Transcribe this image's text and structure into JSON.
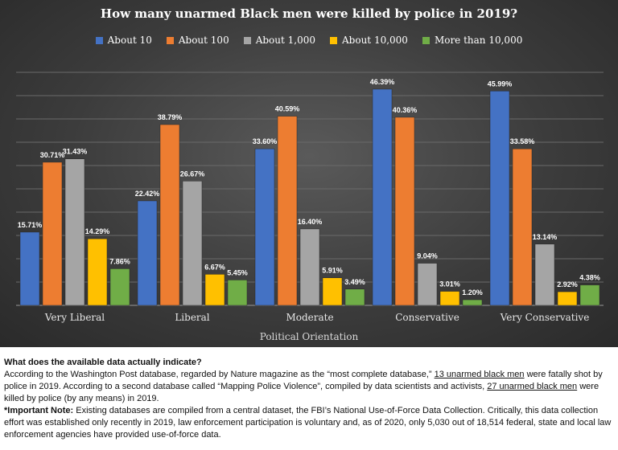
{
  "chart_data": {
    "type": "bar",
    "title": "How many unarmed Black men were killed by police in 2019?",
    "xlabel": "Political Orientation",
    "ylabel": "",
    "ylim": [
      0,
      50
    ],
    "grid": true,
    "legend_position": "top",
    "categories": [
      "Very Liberal",
      "Liberal",
      "Moderate",
      "Conservative",
      "Very Conservative"
    ],
    "series": [
      {
        "name": "About 10",
        "color": "#4472c4",
        "values": [
          15.71,
          22.42,
          33.6,
          46.39,
          45.99
        ],
        "labels": [
          "15.71%",
          "22.42%",
          "33.60%",
          "46.39%",
          "45.99%"
        ]
      },
      {
        "name": "About 100",
        "color": "#ed7d31",
        "values": [
          30.71,
          38.79,
          40.59,
          40.36,
          33.58
        ],
        "labels": [
          "30.71%",
          "38.79%",
          "40.59%",
          "40.36%",
          "33.58%"
        ]
      },
      {
        "name": "About 1,000",
        "color": "#a5a5a5",
        "values": [
          31.43,
          26.67,
          16.4,
          9.04,
          13.14
        ],
        "labels": [
          "31.43%",
          "26.67%",
          "16.40%",
          "9.04%",
          "13.14%"
        ]
      },
      {
        "name": "About 10,000",
        "color": "#ffc000",
        "values": [
          14.29,
          6.67,
          5.91,
          3.01,
          2.92
        ],
        "labels": [
          "14.29%",
          "6.67%",
          "5.91%",
          "3.01%",
          "2.92%"
        ]
      },
      {
        "name": "More than 10,000",
        "color": "#70ad47",
        "values": [
          7.86,
          5.45,
          3.49,
          1.2,
          4.38
        ],
        "labels": [
          "7.86%",
          "5.45%",
          "3.49%",
          "1.20%",
          "4.38%"
        ]
      }
    ]
  },
  "note": {
    "heading": "What does the available data actually indicate?",
    "p1_a": "According to the Washington Post database, regarded by Nature magazine as the “most complete database,” ",
    "p1_link": "13 unarmed black men",
    "p1_b": " were fatally shot by police in 2019. According to a second database called “Mapping Police Violence”, compiled by data scientists and activists, ",
    "p1_link2": "27 unarmed black men",
    "p1_c": " were killed by police (by any means) in 2019.",
    "important_label": "*Important Note:",
    "important_text": " Existing databases are compiled from a central dataset, the FBI’s National Use-of-Force Data Collection. Critically, this data collection effort was established only recently in 2019, law enforcement participation is voluntary and, as of 2020, only 5,030 out of 18,514 federal, state and local law enforcement agencies have provided use-of-force data."
  }
}
